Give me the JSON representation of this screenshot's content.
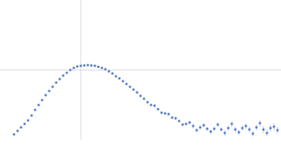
{
  "chart_data": {
    "type": "scatter",
    "color": "#3a66b8",
    "error_color": "#9fb3dc",
    "xlim": [
      0,
      4
    ],
    "ylim": [
      0,
      2
    ],
    "xgrid": [
      1.15
    ],
    "ygrid": [
      1
    ],
    "x": [
      0.2,
      0.25,
      0.3,
      0.35,
      0.4,
      0.45,
      0.5,
      0.55,
      0.6,
      0.65,
      0.7,
      0.75,
      0.8,
      0.85,
      0.9,
      0.95,
      1.0,
      1.05,
      1.1,
      1.15,
      1.2,
      1.25,
      1.3,
      1.35,
      1.4,
      1.45,
      1.5,
      1.55,
      1.6,
      1.65,
      1.7,
      1.75,
      1.8,
      1.85,
      1.9,
      1.95,
      2.0,
      2.05,
      2.1,
      2.15,
      2.2,
      2.25,
      2.3,
      2.35,
      2.4,
      2.45,
      2.5,
      2.55,
      2.6,
      2.65,
      2.7,
      2.75,
      2.8,
      2.85,
      2.9,
      2.95,
      3.0,
      3.05,
      3.1,
      3.15,
      3.2,
      3.25,
      3.3,
      3.35,
      3.4,
      3.45,
      3.5,
      3.55,
      3.6,
      3.65,
      3.7,
      3.75,
      3.8,
      3.85,
      3.9,
      3.95
    ],
    "values": [
      0.08,
      0.13,
      0.18,
      0.23,
      0.28,
      0.35,
      0.43,
      0.5,
      0.57,
      0.64,
      0.7,
      0.76,
      0.82,
      0.87,
      0.92,
      0.96,
      1.0,
      1.03,
      1.05,
      1.06,
      1.065,
      1.07,
      1.065,
      1.06,
      1.045,
      1.03,
      1.01,
      0.98,
      0.95,
      0.91,
      0.88,
      0.84,
      0.8,
      0.76,
      0.72,
      0.68,
      0.63,
      0.59,
      0.54,
      0.5,
      0.49,
      0.44,
      0.39,
      0.38,
      0.37,
      0.32,
      0.31,
      0.27,
      0.22,
      0.23,
      0.25,
      0.2,
      0.14,
      0.18,
      0.21,
      0.16,
      0.12,
      0.16,
      0.22,
      0.15,
      0.1,
      0.17,
      0.23,
      0.15,
      0.11,
      0.17,
      0.2,
      0.15,
      0.09,
      0.18,
      0.24,
      0.15,
      0.1,
      0.17,
      0.19,
      0.14
    ],
    "errors": [
      0.005,
      0.005,
      0.005,
      0.005,
      0.005,
      0.005,
      0.005,
      0.005,
      0.005,
      0.005,
      0.005,
      0.005,
      0.005,
      0.005,
      0.005,
      0.005,
      0.005,
      0.005,
      0.005,
      0.005,
      0.005,
      0.005,
      0.005,
      0.005,
      0.005,
      0.005,
      0.005,
      0.005,
      0.005,
      0.005,
      0.005,
      0.005,
      0.005,
      0.005,
      0.005,
      0.005,
      0.005,
      0.005,
      0.005,
      0.005,
      0.02,
      0.02,
      0.02,
      0.02,
      0.02,
      0.02,
      0.02,
      0.02,
      0.02,
      0.02,
      0.03,
      0.03,
      0.03,
      0.03,
      0.03,
      0.03,
      0.03,
      0.03,
      0.03,
      0.03,
      0.04,
      0.04,
      0.04,
      0.04,
      0.04,
      0.04,
      0.04,
      0.04,
      0.04,
      0.04,
      0.05,
      0.05,
      0.05,
      0.05,
      0.05,
      0.05
    ]
  }
}
